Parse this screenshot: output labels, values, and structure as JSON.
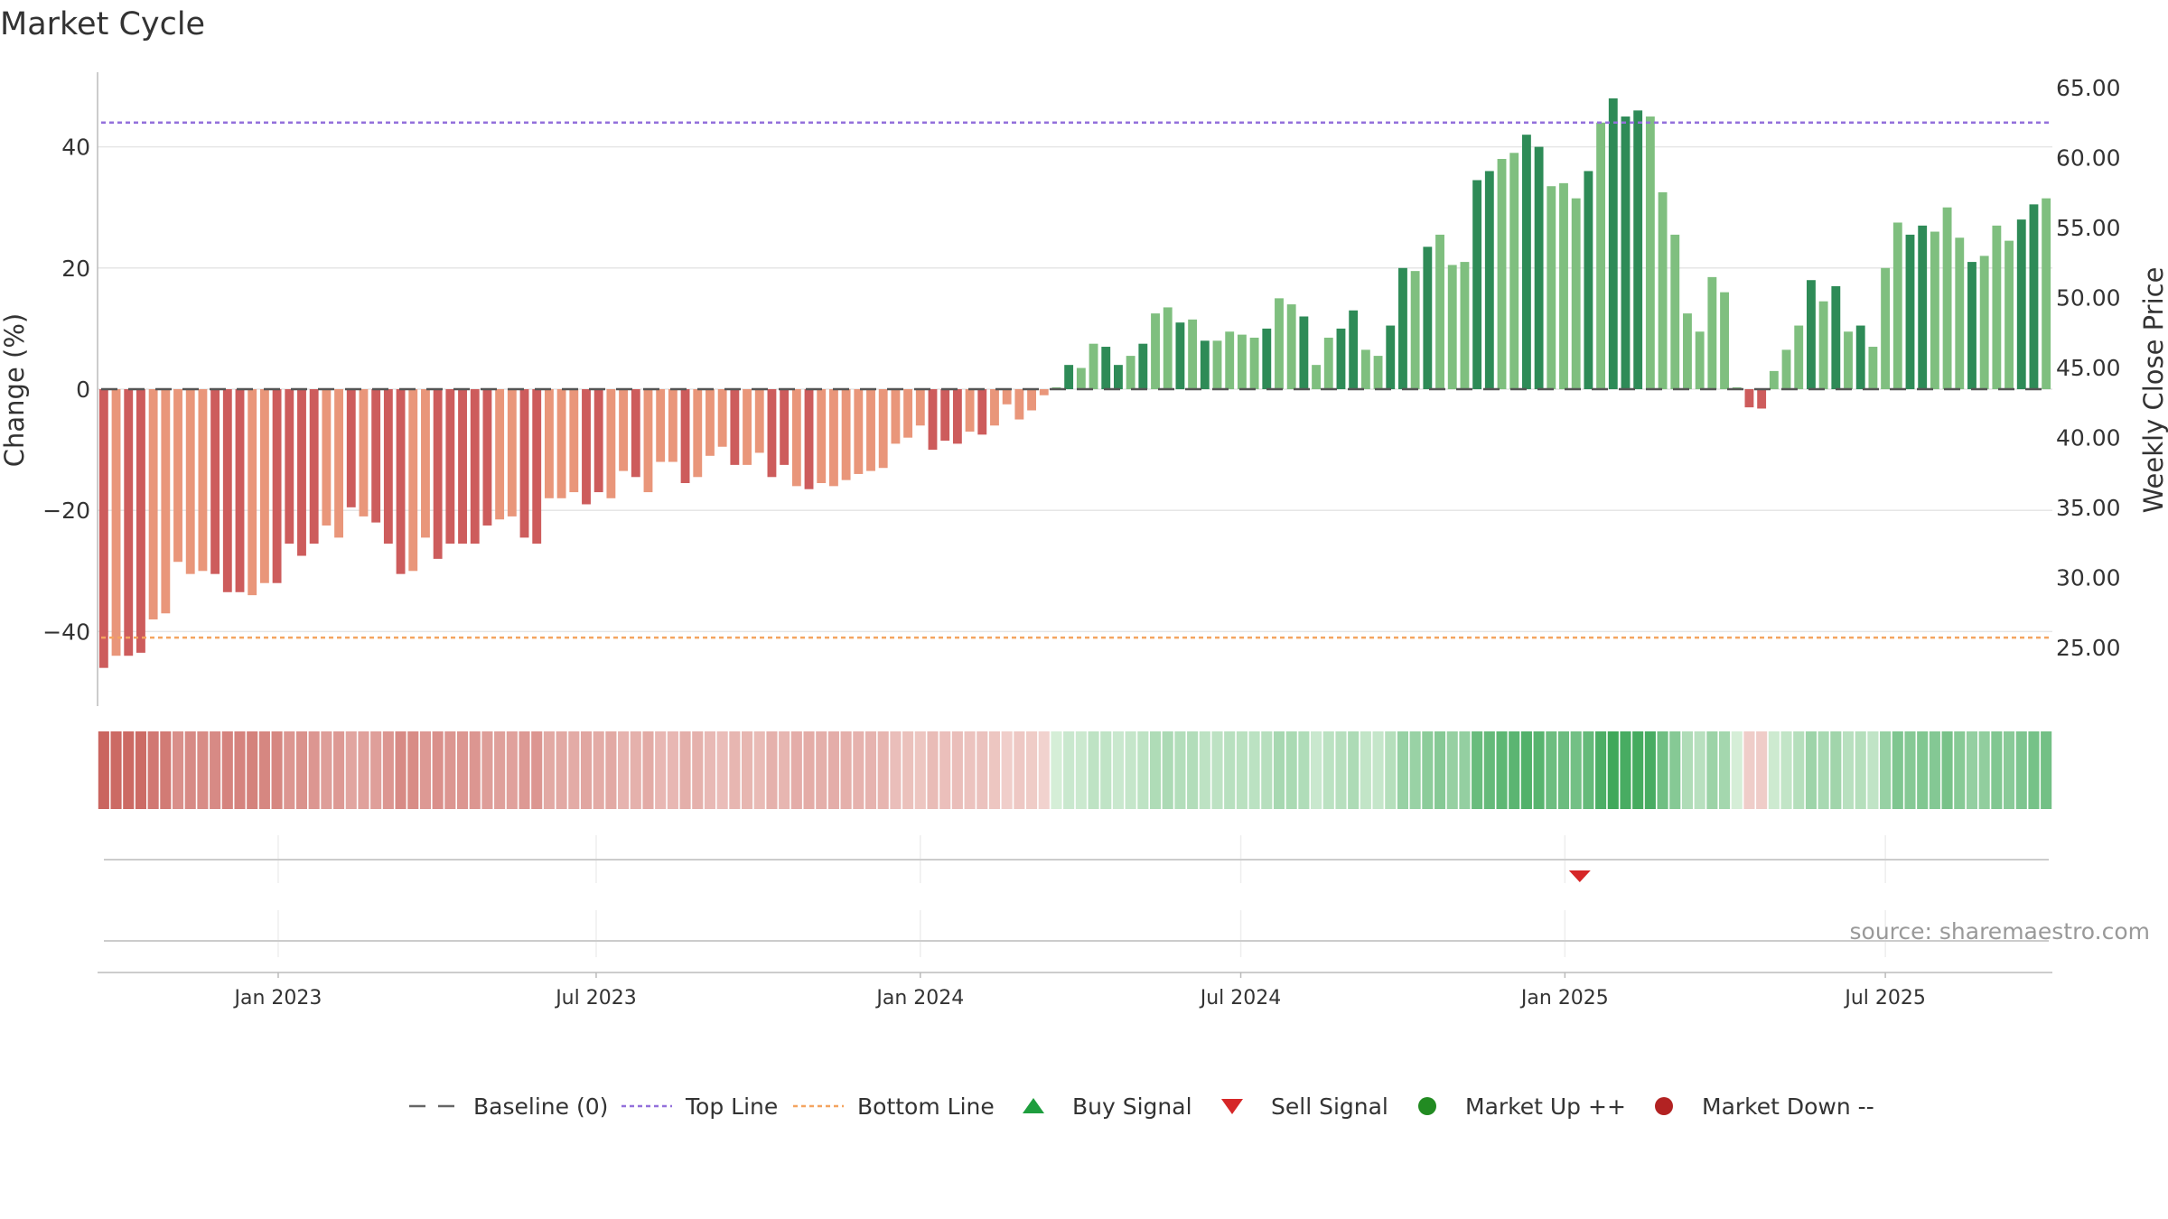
{
  "chart_data": {
    "type": "bar",
    "title": "Market Cycle",
    "ylabel_left": "Change (%)",
    "ylabel_right": "Weekly Close Price",
    "ylim_left": [
      -52,
      52
    ],
    "ylim_right": [
      20.5,
      65.5
    ],
    "left_ticks": [
      40,
      20,
      0,
      -20,
      -40
    ],
    "left_tick_labels": [
      "40",
      "20",
      "0",
      "−20",
      "−40"
    ],
    "right_ticks": [
      65,
      60,
      55,
      50,
      45,
      40,
      35,
      30,
      25
    ],
    "right_tick_labels": [
      "65.00",
      "60.00",
      "55.00",
      "50.00",
      "45.00",
      "40.00",
      "35.00",
      "30.00",
      "25.00"
    ],
    "x_ticks": [
      "Jan 2023",
      "Jul 2023",
      "Jan 2024",
      "Jul 2024",
      "Jan 2025",
      "Jul 2025"
    ],
    "x_tick_weeks": [
      14.6,
      40.3,
      66.5,
      92.4,
      118.6,
      144.5
    ],
    "top_line": 44,
    "bottom_line": -41,
    "baseline": 0,
    "grid": true,
    "change_pct": [
      -46,
      -44,
      -44,
      -43.5,
      -38,
      -37,
      -28.5,
      -30.5,
      -30,
      -30.5,
      -33.5,
      -33.5,
      -34,
      -32,
      -32,
      -25.5,
      -27.5,
      -25.5,
      -22.5,
      -24.5,
      -19.5,
      -21,
      -22,
      -25.5,
      -30.5,
      -30,
      -24.5,
      -28,
      -25.5,
      -25.5,
      -25.5,
      -22.5,
      -21.5,
      -21,
      -24.5,
      -25.5,
      -18,
      -18,
      -17,
      -19,
      -17,
      -18,
      -13.5,
      -14.5,
      -17,
      -12,
      -12,
      -15.5,
      -14.5,
      -11,
      -9.5,
      -12.5,
      -12.5,
      -10.5,
      -14.5,
      -12.5,
      -16,
      -16.5,
      -15.5,
      -16,
      -15,
      -14,
      -13.5,
      -13,
      -9,
      -8,
      -6,
      -10,
      -8.5,
      -9,
      -7,
      -7.5,
      -6,
      -2.5,
      -5,
      -3.5,
      -1,
      0.3,
      4,
      3.5,
      7.5,
      7,
      4,
      5.5,
      7.5,
      12.5,
      13.5,
      11,
      11.5,
      8,
      8,
      9.5,
      9,
      8.5,
      10,
      15,
      14,
      12,
      4,
      8.5,
      10,
      13,
      6.5,
      5.5,
      10.5,
      20,
      19.5,
      23.5,
      25.5,
      20.5,
      21,
      34.5,
      36,
      38,
      39,
      42,
      40,
      33.5,
      34,
      31.5,
      36,
      44,
      48,
      45,
      46,
      45,
      32.5,
      25.5,
      12.5,
      9.5,
      18.5,
      16,
      0.3,
      -3,
      -3.2,
      3,
      6.5,
      10.5,
      18,
      14.5,
      17,
      9.5,
      10.5,
      7,
      20,
      27.5,
      25.5,
      27,
      26,
      30,
      25,
      21,
      22,
      27,
      24.5,
      28,
      30.5,
      31.5
    ],
    "light_bars": [
      1,
      4,
      5,
      6,
      7,
      8,
      12,
      13,
      18,
      19,
      21,
      25,
      26,
      32,
      33,
      36,
      37,
      38,
      41,
      42,
      44,
      45,
      46,
      48,
      49,
      50,
      52,
      53,
      56,
      58,
      59,
      60,
      61,
      62,
      63,
      64,
      65,
      66,
      70,
      72,
      73,
      74,
      75,
      76,
      77,
      79,
      80,
      83,
      85,
      86,
      88,
      90,
      91,
      92,
      93,
      95,
      96,
      98,
      99,
      102,
      103,
      106,
      108,
      109,
      110,
      113,
      114,
      117,
      118,
      119,
      121,
      125,
      126,
      127,
      128,
      129,
      130,
      131,
      132,
      135,
      136,
      137,
      139,
      141,
      143,
      144,
      145,
      148,
      149,
      150,
      152,
      153,
      154,
      157,
      158
    ],
    "legend": [
      "Baseline (0)",
      "Top Line",
      "Bottom Line",
      "Buy Signal",
      "Sell Signal",
      "Market Up ++",
      "Market Down --"
    ],
    "signals": [
      {
        "type": "sell",
        "week": 119.8
      }
    ],
    "colors": {
      "bar_up_dark": "#2e8b57",
      "bar_up_light": "#7fbf7f",
      "bar_down_dark": "#cd5c5c",
      "bar_down_light": "#e9967a",
      "top_line": "#9370db",
      "bottom_line": "#f4a460",
      "baseline": "#555555",
      "buy": "#1e9e3e",
      "sell": "#d62728",
      "market_up": "#228b22",
      "market_down": "#b22222",
      "grid": "#e6e6e6",
      "text": "#333333"
    }
  },
  "source_text": "source: sharemaestro.com"
}
